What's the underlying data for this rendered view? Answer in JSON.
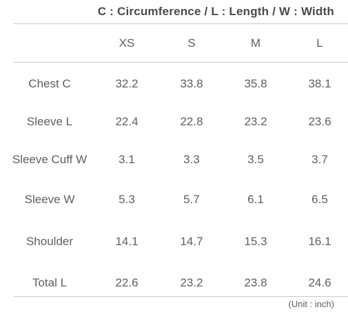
{
  "legend": "C : Circumference / L : Length / W : Width",
  "table": {
    "headers": [
      "XS",
      "S",
      "M",
      "L"
    ],
    "rows": [
      {
        "label": "Chest C",
        "values": [
          "32.2",
          "33.8",
          "35.8",
          "38.1"
        ]
      },
      {
        "label": "Sleeve L",
        "values": [
          "22.4",
          "22.8",
          "23.2",
          "23.6"
        ]
      },
      {
        "label": "Sleeve Cuff W",
        "values": [
          "3.1",
          "3.3",
          "3.5",
          "3.7"
        ]
      },
      {
        "label": "Sleeve W",
        "values": [
          "5.3",
          "5.7",
          "6.1",
          "6.5"
        ]
      },
      {
        "label": "Shoulder",
        "values": [
          "14.1",
          "14.7",
          "15.3",
          "16.1"
        ]
      },
      {
        "label": "Total L",
        "values": [
          "22.6",
          "23.2",
          "23.8",
          "24.6"
        ]
      }
    ]
  },
  "unit_note": "(Unit : inch)"
}
